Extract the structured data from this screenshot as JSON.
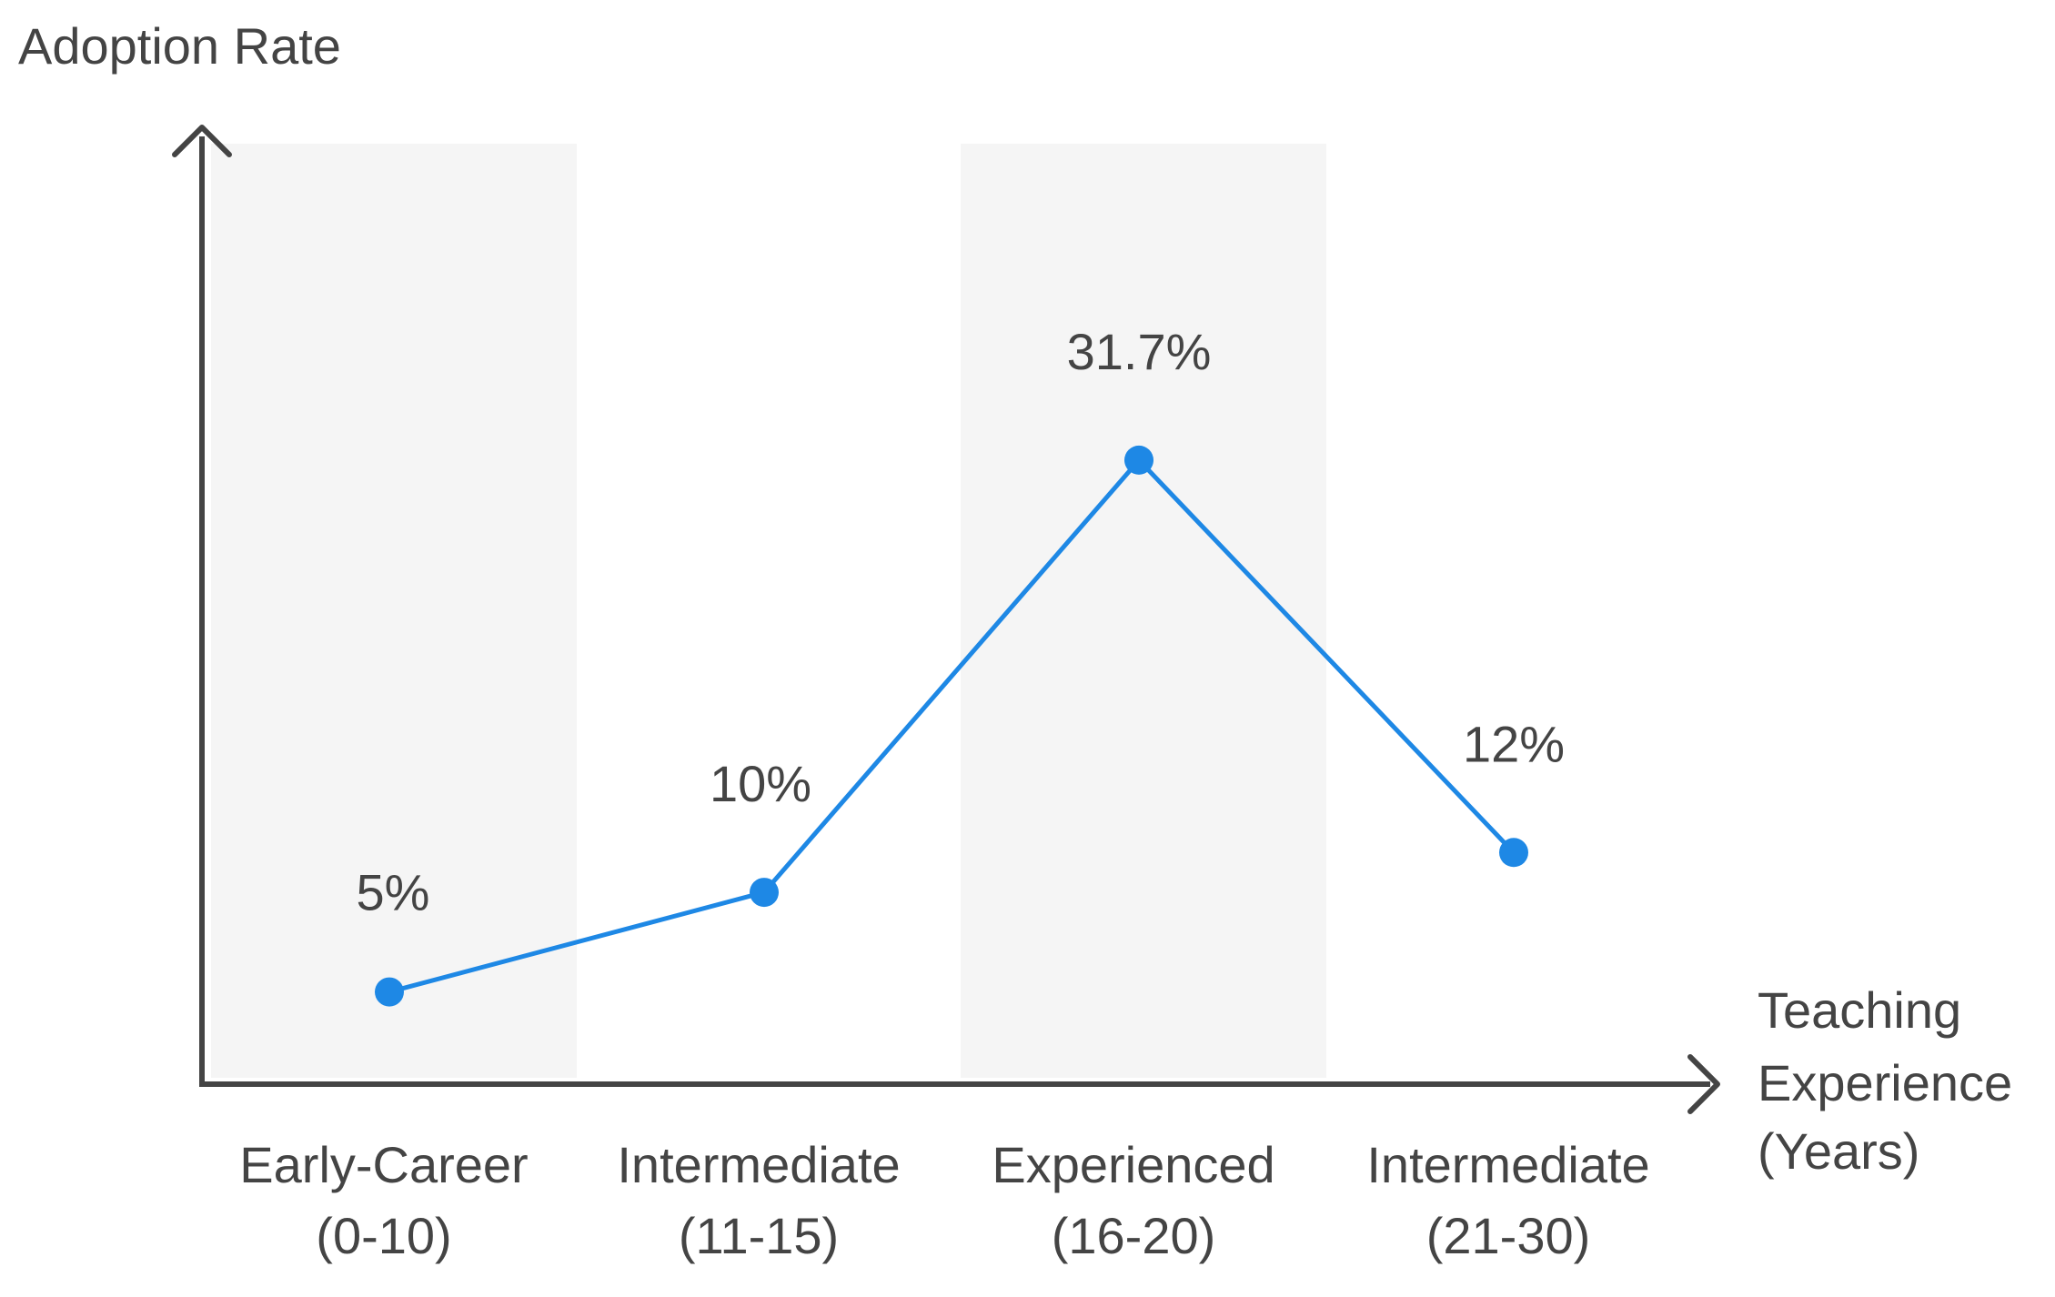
{
  "chart_data": {
    "type": "line",
    "ylabel": "Adoption Rate",
    "xlabel_lines": [
      "Teaching",
      "Experience",
      "(Years)"
    ],
    "categories": [
      [
        "Early-Career",
        "(0-10)"
      ],
      [
        "Intermediate",
        "(11-15)"
      ],
      [
        "Experienced",
        "(16-20)"
      ],
      [
        "Intermediate",
        "(21-30)"
      ]
    ],
    "values": [
      5,
      10,
      31.7,
      12
    ],
    "data_labels": [
      "5%",
      "10%",
      "31.7%",
      "12%"
    ],
    "shaded_bands": [
      0,
      2
    ],
    "colors": {
      "line": "#1e88e5",
      "axis": "#444444",
      "band": "#f5f5f5",
      "text": "#444444"
    }
  }
}
